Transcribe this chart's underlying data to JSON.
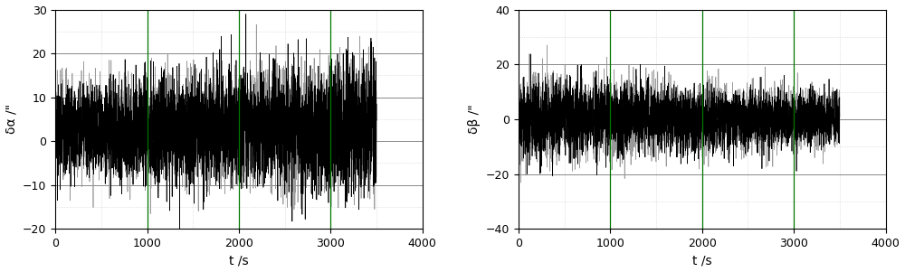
{
  "fig_width": 10.0,
  "fig_height": 3.01,
  "dpi": 100,
  "background_color": "#ffffff",
  "subplot1": {
    "ylabel": "δα /\"",
    "xlabel": "t /s",
    "xlim": [
      0,
      4000
    ],
    "ylim": [
      -20,
      30
    ],
    "yticks": [
      -20,
      -10,
      0,
      10,
      20,
      30
    ],
    "xticks": [
      0,
      1000,
      2000,
      3000,
      4000
    ],
    "green_vlines": [
      1000,
      2000,
      3000
    ],
    "gray_hlines": [
      -20,
      -10,
      0,
      10,
      20,
      30
    ],
    "grid_green_color": "#007700",
    "grid_gray_color": "#888888",
    "grid_dot_color": "#cccccc",
    "line_color_gray": "#999999",
    "line_color_black": "#000000",
    "n_points": 3500,
    "t_max": 3500,
    "gray_amp_start": 5.5,
    "gray_amp_end": 7.0,
    "gray_mean_start": 3.0,
    "gray_mean_end": 3.5,
    "black_amp_start": 5.0,
    "black_amp_end": 7.5,
    "black_mean_start": 2.5,
    "black_mean_end": 3.0,
    "seed_gray": 10,
    "seed_black": 20
  },
  "subplot2": {
    "ylabel": "δβ /\"",
    "xlabel": "t /s",
    "xlim": [
      0,
      4000
    ],
    "ylim": [
      -40,
      40
    ],
    "yticks": [
      -40,
      -20,
      0,
      20,
      40
    ],
    "xticks": [
      0,
      1000,
      2000,
      3000,
      4000
    ],
    "green_vlines": [
      1000,
      2000,
      3000
    ],
    "gray_hlines": [
      -40,
      -20,
      0,
      20,
      40
    ],
    "grid_green_color": "#007700",
    "grid_gray_color": "#888888",
    "grid_dot_color": "#cccccc",
    "line_color_gray": "#999999",
    "line_color_black": "#000000",
    "n_points": 3500,
    "t_max": 3500,
    "gray_amp_start": 8.0,
    "gray_amp_end": 5.0,
    "gray_mean": 0.0,
    "black_amp_start": 7.0,
    "black_amp_end": 4.5,
    "black_mean": 0.0,
    "seed_gray": 30,
    "seed_black": 40
  },
  "lw_gray": 0.5,
  "lw_black": 0.5
}
